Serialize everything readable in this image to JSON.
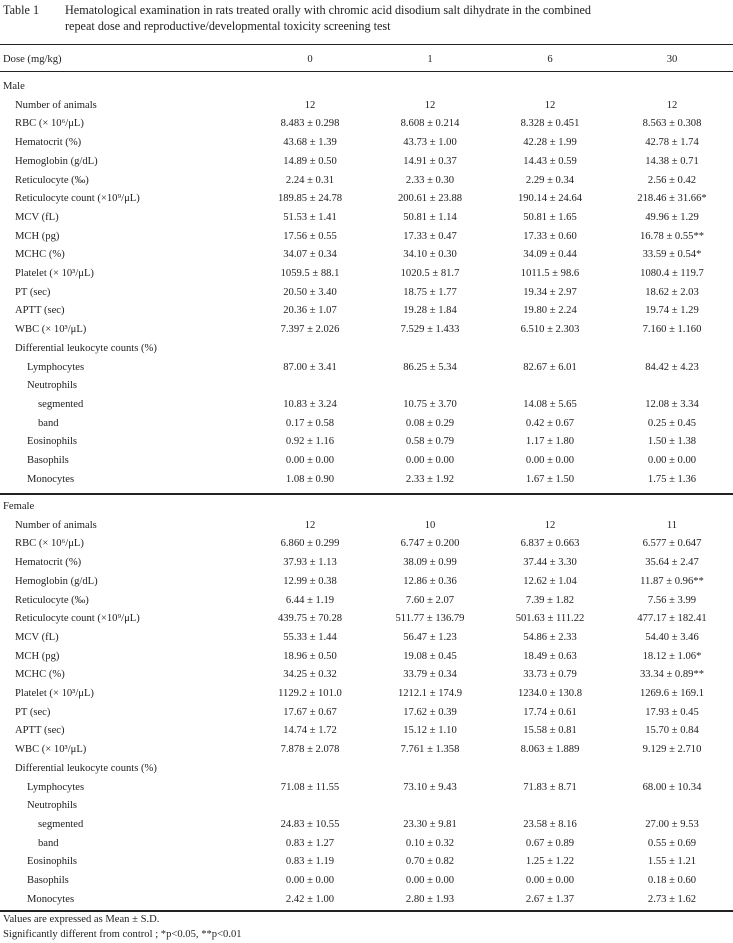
{
  "title": {
    "caption": "Table 1",
    "line1": "Hematological examination in rats treated orally with chromic acid disodium salt dihydrate in the combined",
    "line2": "repeat dose and reproductive/developmental toxicity screening test"
  },
  "header": {
    "label": "Dose (mg/kg)",
    "doses": [
      "0",
      "1",
      "6",
      "30"
    ]
  },
  "sections": [
    {
      "name": "Male",
      "rows": [
        {
          "label": "Number of animals",
          "indent": 1,
          "values": [
            "12",
            "12",
            "12",
            "12"
          ]
        },
        {
          "label": "RBC (× 10⁶/μL)",
          "indent": 1,
          "values": [
            "8.483 ± 0.298",
            "8.608 ± 0.214",
            "8.328 ± 0.451",
            "8.563 ± 0.308"
          ]
        },
        {
          "label": "Hematocrit (%)",
          "indent": 1,
          "values": [
            "43.68 ± 1.39",
            "43.73 ± 1.00",
            "42.28 ± 1.99",
            "42.78 ± 1.74"
          ]
        },
        {
          "label": "Hemoglobin (g/dL)",
          "indent": 1,
          "values": [
            "14.89 ± 0.50",
            "14.91 ± 0.37",
            "14.43 ± 0.59",
            "14.38 ± 0.71"
          ]
        },
        {
          "label": "Reticulocyte (‰)",
          "indent": 1,
          "values": [
            "2.24 ± 0.31",
            "2.33 ± 0.30",
            "2.29 ± 0.34",
            "2.56 ± 0.42"
          ]
        },
        {
          "label": "Reticulocyte count (×10⁹/μL)",
          "indent": 1,
          "values": [
            "189.85 ± 24.78",
            "200.61 ± 23.88",
            "190.14 ± 24.64",
            "218.46 ± 31.66*"
          ]
        },
        {
          "label": "MCV (fL)",
          "indent": 1,
          "values": [
            "51.53 ± 1.41",
            "50.81 ± 1.14",
            "50.81 ± 1.65",
            "49.96 ± 1.29"
          ]
        },
        {
          "label": "MCH (pg)",
          "indent": 1,
          "values": [
            "17.56 ± 0.55",
            "17.33 ± 0.47",
            "17.33 ± 0.60",
            "16.78 ± 0.55**"
          ]
        },
        {
          "label": "MCHC (%)",
          "indent": 1,
          "values": [
            "34.07 ± 0.34",
            "34.10 ± 0.30",
            "34.09 ± 0.44",
            "33.59 ± 0.54*"
          ]
        },
        {
          "label": "Platelet (× 10³/μL)",
          "indent": 1,
          "values": [
            "1059.5 ± 88.1",
            "1020.5 ± 81.7",
            "1011.5 ± 98.6",
            "1080.4 ± 119.7"
          ]
        },
        {
          "label": "PT (sec)",
          "indent": 1,
          "values": [
            "20.50 ± 3.40",
            "18.75 ± 1.77",
            "19.34 ± 2.97",
            "18.62 ± 2.03"
          ]
        },
        {
          "label": "APTT (sec)",
          "indent": 1,
          "values": [
            "20.36 ± 1.07",
            "19.28 ± 1.84",
            "19.80 ± 2.24",
            "19.74 ± 1.29"
          ]
        },
        {
          "label": "WBC (× 10³/μL)",
          "indent": 1,
          "values": [
            "7.397 ± 2.026",
            "7.529 ± 1.433",
            "6.510 ± 2.303",
            "7.160 ± 1.160"
          ]
        },
        {
          "label": "Differential leukocyte counts (%)",
          "indent": 1,
          "values": []
        },
        {
          "label": "Lymphocytes",
          "indent": 2,
          "values": [
            "87.00 ± 3.41",
            "86.25 ± 5.34",
            "82.67 ± 6.01",
            "84.42 ± 4.23"
          ]
        },
        {
          "label": "Neutrophils",
          "indent": 2,
          "values": []
        },
        {
          "label": "segmented",
          "indent": 3,
          "values": [
            "10.83 ± 3.24",
            "10.75 ± 3.70",
            "14.08 ± 5.65",
            "12.08 ± 3.34"
          ]
        },
        {
          "label": "band",
          "indent": 3,
          "values": [
            "0.17 ± 0.58",
            "0.08 ± 0.29",
            "0.42 ± 0.67",
            "0.25 ± 0.45"
          ]
        },
        {
          "label": "Eosinophils",
          "indent": 2,
          "values": [
            "0.92 ± 1.16",
            "0.58 ± 0.79",
            "1.17 ± 1.80",
            "1.50 ± 1.38"
          ]
        },
        {
          "label": "Basophils",
          "indent": 2,
          "values": [
            "0.00 ± 0.00",
            "0.00 ± 0.00",
            "0.00 ± 0.00",
            "0.00 ± 0.00"
          ]
        },
        {
          "label": "Monocytes",
          "indent": 2,
          "values": [
            "1.08 ± 0.90",
            "2.33 ± 1.92",
            "1.67 ± 1.50",
            "1.75 ± 1.36"
          ]
        }
      ]
    },
    {
      "name": "Female",
      "rows": [
        {
          "label": "Number of animals",
          "indent": 1,
          "values": [
            "12",
            "10",
            "12",
            "11"
          ]
        },
        {
          "label": "RBC (× 10⁶/μL)",
          "indent": 1,
          "values": [
            "6.860 ± 0.299",
            "6.747 ± 0.200",
            "6.837 ± 0.663",
            "6.577 ± 0.647"
          ]
        },
        {
          "label": "Hematocrit (%)",
          "indent": 1,
          "values": [
            "37.93 ± 1.13",
            "38.09 ± 0.99",
            "37.44 ± 3.30",
            "35.64 ± 2.47"
          ]
        },
        {
          "label": "Hemoglobin (g/dL)",
          "indent": 1,
          "values": [
            "12.99 ± 0.38",
            "12.86 ± 0.36",
            "12.62 ± 1.04",
            "11.87 ± 0.96**"
          ]
        },
        {
          "label": "Reticulocyte (‰)",
          "indent": 1,
          "values": [
            "6.44 ± 1.19",
            "7.60 ± 2.07",
            "7.39 ± 1.82",
            "7.56 ± 3.99"
          ]
        },
        {
          "label": "Reticulocyte count (×10⁹/μL)",
          "indent": 1,
          "values": [
            "439.75 ± 70.28",
            "511.77 ± 136.79",
            "501.63 ± 111.22",
            "477.17 ± 182.41"
          ]
        },
        {
          "label": "MCV (fL)",
          "indent": 1,
          "values": [
            "55.33 ± 1.44",
            "56.47 ± 1.23",
            "54.86 ± 2.33",
            "54.40 ± 3.46"
          ]
        },
        {
          "label": "MCH (pg)",
          "indent": 1,
          "values": [
            "18.96 ± 0.50",
            "19.08 ± 0.45",
            "18.49 ± 0.63",
            "18.12 ± 1.06*"
          ]
        },
        {
          "label": "MCHC (%)",
          "indent": 1,
          "values": [
            "34.25 ± 0.32",
            "33.79 ± 0.34",
            "33.73 ± 0.79",
            "33.34 ± 0.89**"
          ]
        },
        {
          "label": "Platelet (× 10³/μL)",
          "indent": 1,
          "values": [
            "1129.2 ± 101.0",
            "1212.1 ± 174.9",
            "1234.0 ± 130.8",
            "1269.6 ± 169.1"
          ]
        },
        {
          "label": "PT (sec)",
          "indent": 1,
          "values": [
            "17.67 ± 0.67",
            "17.62 ± 0.39",
            "17.74 ± 0.61",
            "17.93 ± 0.45"
          ]
        },
        {
          "label": "APTT (sec)",
          "indent": 1,
          "values": [
            "14.74 ± 1.72",
            "15.12 ± 1.10",
            "15.58 ± 0.81",
            "15.70 ± 0.84"
          ]
        },
        {
          "label": "WBC (× 10³/μL)",
          "indent": 1,
          "values": [
            "7.878 ± 2.078",
            "7.761 ± 1.358",
            "8.063 ± 1.889",
            "9.129 ± 2.710"
          ]
        },
        {
          "label": "Differential leukocyte counts (%)",
          "indent": 1,
          "values": []
        },
        {
          "label": "Lymphocytes",
          "indent": 2,
          "values": [
            "71.08 ± 11.55",
            "73.10 ± 9.43",
            "71.83 ± 8.71",
            "68.00 ± 10.34"
          ]
        },
        {
          "label": "Neutrophils",
          "indent": 2,
          "values": []
        },
        {
          "label": "segmented",
          "indent": 3,
          "values": [
            "24.83 ± 10.55",
            "23.30 ± 9.81",
            "23.58 ± 8.16",
            "27.00 ± 9.53"
          ]
        },
        {
          "label": "band",
          "indent": 3,
          "values": [
            "0.83 ± 1.27",
            "0.10 ± 0.32",
            "0.67 ± 0.89",
            "0.55 ± 0.69"
          ]
        },
        {
          "label": "Eosinophils",
          "indent": 2,
          "values": [
            "0.83 ± 1.19",
            "0.70 ± 0.82",
            "1.25 ± 1.22",
            "1.55 ± 1.21"
          ]
        },
        {
          "label": "Basophils",
          "indent": 2,
          "values": [
            "0.00 ± 0.00",
            "0.00 ± 0.00",
            "0.00 ± 0.00",
            "0.18 ± 0.60"
          ]
        },
        {
          "label": "Monocytes",
          "indent": 2,
          "values": [
            "2.42 ± 1.00",
            "2.80 ± 1.93",
            "2.67 ± 1.37",
            "2.73 ± 1.62"
          ]
        }
      ]
    }
  ],
  "notes": [
    "Values are expressed as Mean ± S.D.",
    "Significantly different from control ; *p<0.05, **p<0.01"
  ]
}
